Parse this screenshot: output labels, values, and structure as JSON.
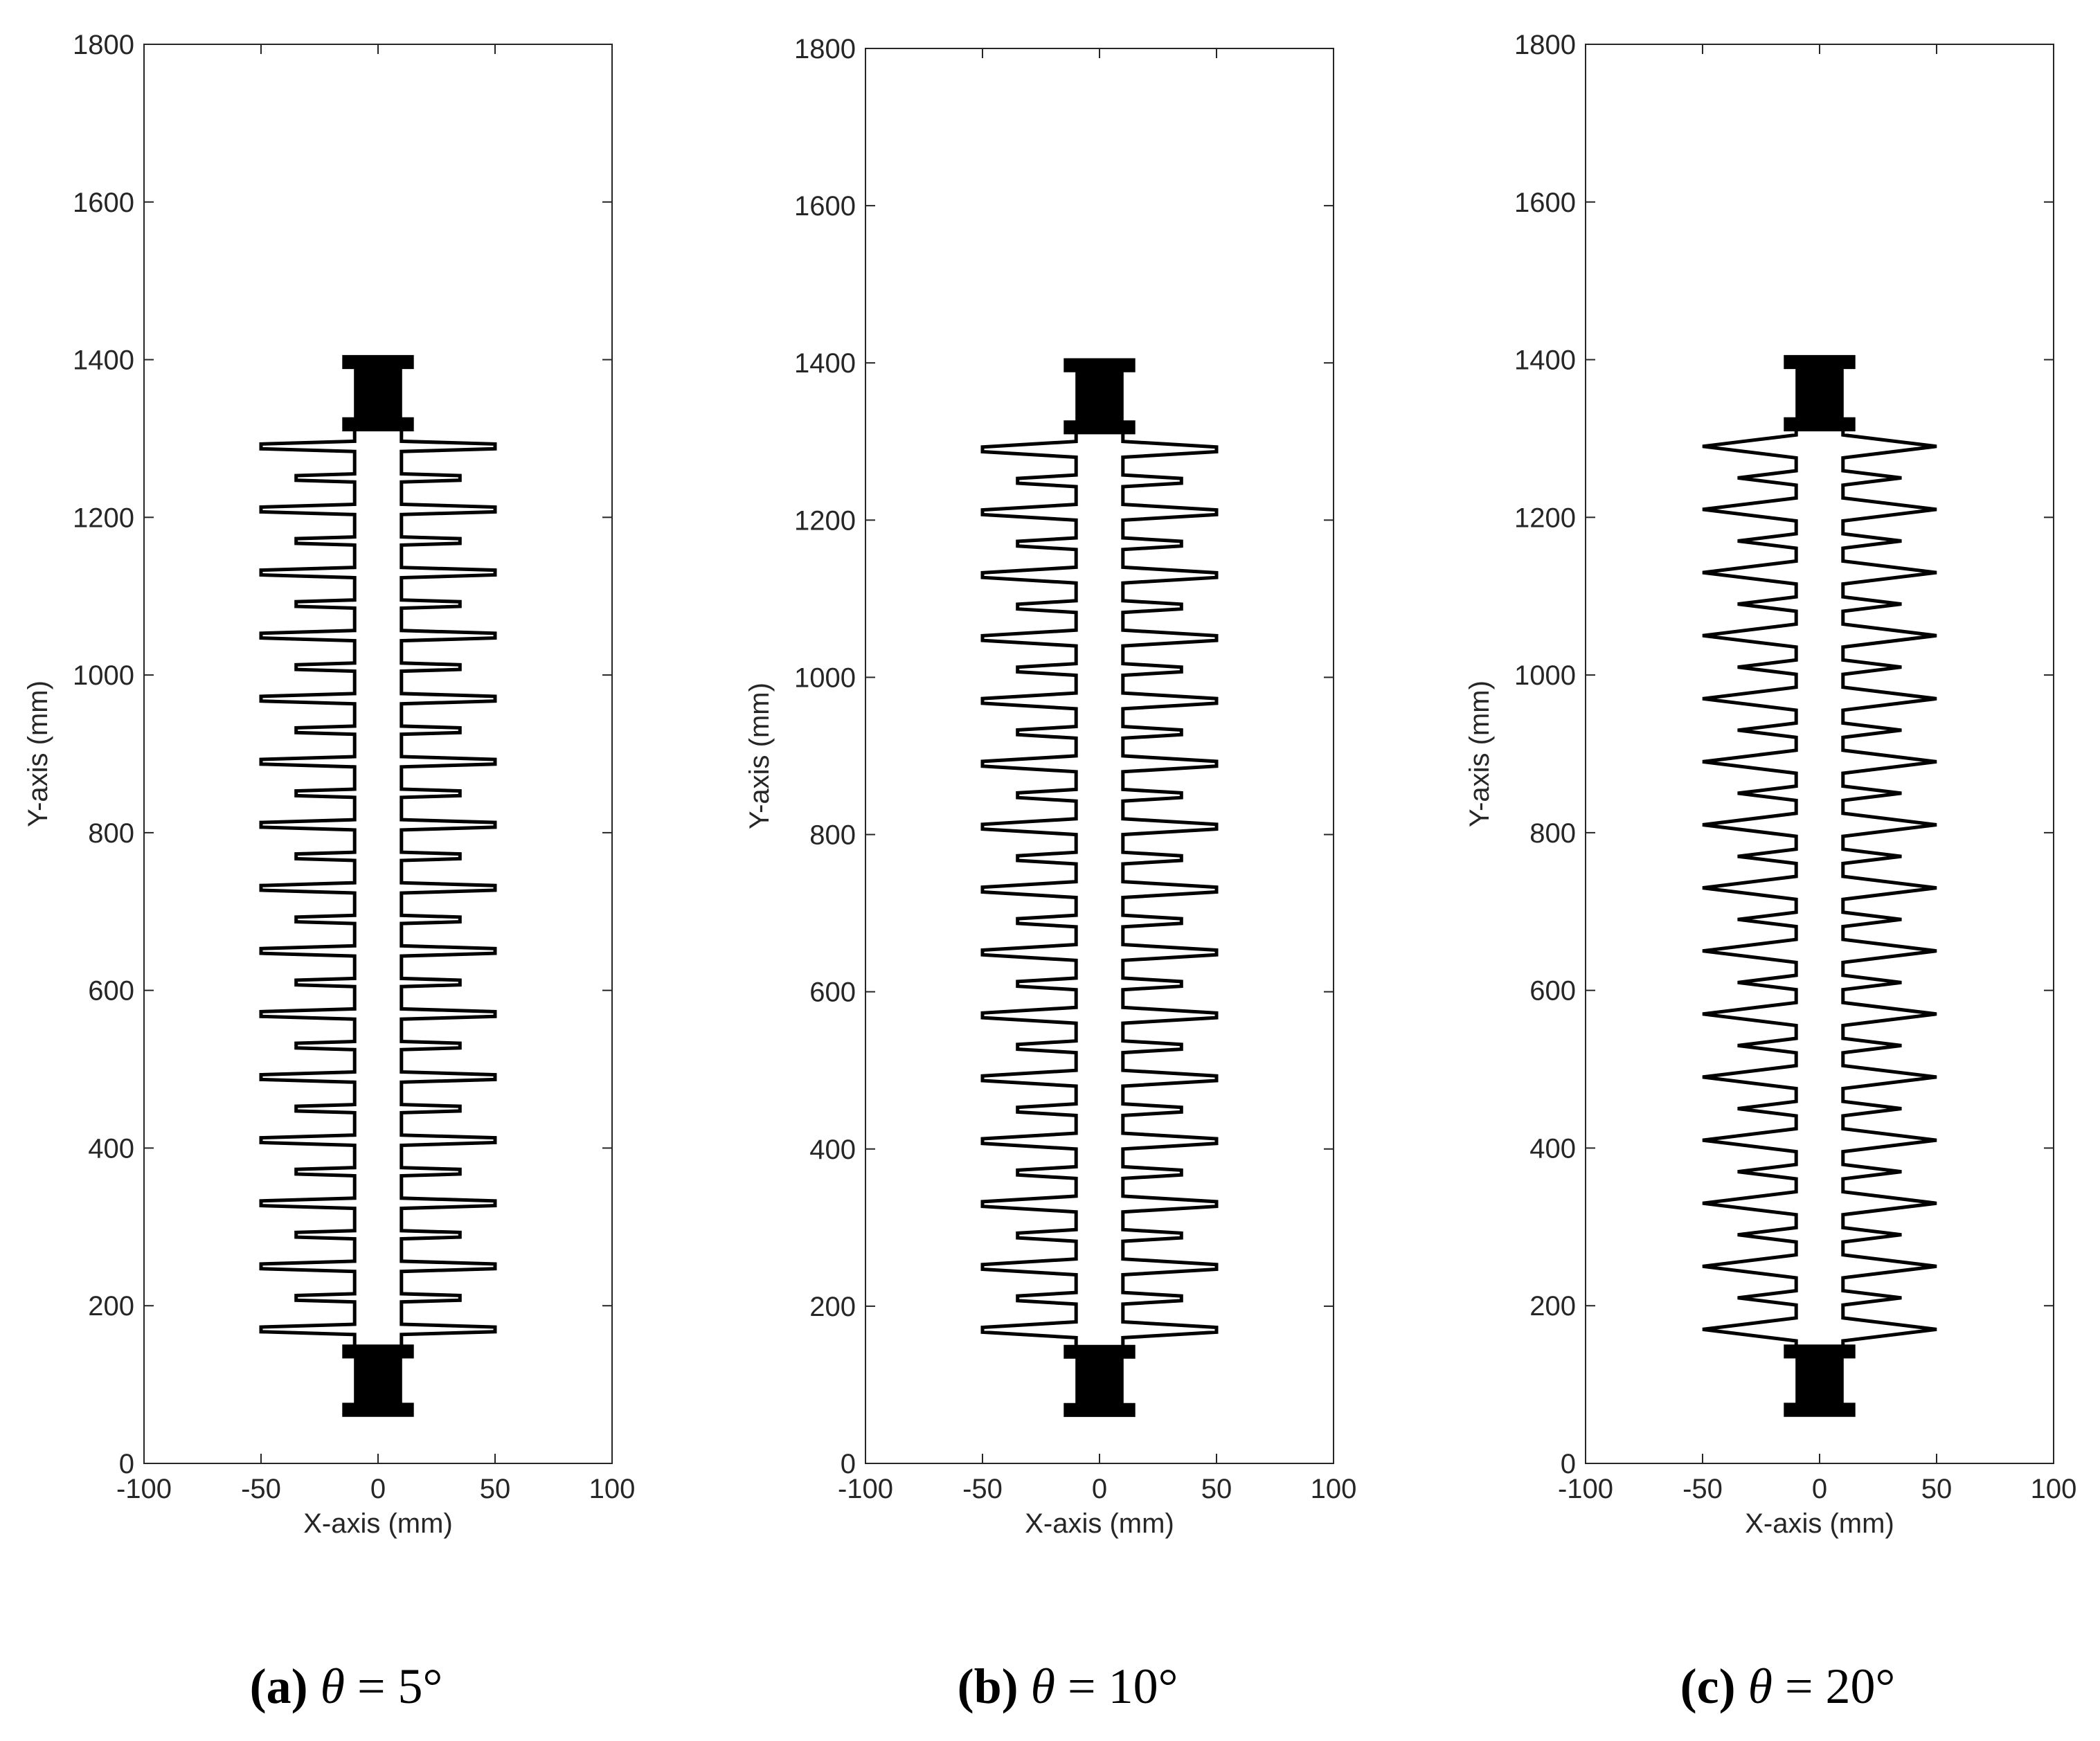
{
  "colors": {
    "outline": "#000000",
    "fitting": "#000000",
    "axes": "#262626",
    "background": "#ffffff"
  },
  "chart_data": [
    {
      "type": "line",
      "title": "",
      "xlabel": "X-axis (mm)",
      "ylabel": "Y-axis (mm)",
      "xlim": [
        -100,
        100
      ],
      "ylim": [
        0,
        1800
      ],
      "xticks": [
        "-100",
        "-50",
        "0",
        "50",
        "100"
      ],
      "yticks": [
        "0",
        "200",
        "400",
        "600",
        "800",
        "1000",
        "1200",
        "1400",
        "1600",
        "1800"
      ],
      "grid": false,
      "caption": {
        "letter": "(a)",
        "symbol": "θ",
        "value": "= 5°"
      },
      "shed_angle_deg": 5,
      "core_half_width": 10,
      "shed_tip_thickness": 6,
      "large_shed": {
        "x_extent": 50,
        "y_centers": [
          170,
          250,
          330,
          410,
          490,
          570,
          650,
          730,
          810,
          890,
          970,
          1050,
          1130,
          1210,
          1290
        ]
      },
      "small_shed": {
        "x_extent": 35,
        "y_centers": [
          210,
          290,
          370,
          450,
          530,
          610,
          690,
          770,
          850,
          930,
          1010,
          1090,
          1170,
          1250
        ]
      },
      "end_fittings": [
        {
          "y_bottom": 60,
          "y_top": 150,
          "half_width_outer": 15,
          "half_width_inner": 10
        },
        {
          "y_bottom": 1310,
          "y_top": 1405,
          "half_width_outer": 15,
          "half_width_inner": 10
        }
      ]
    },
    {
      "type": "line",
      "title": "",
      "xlabel": "X-axis (mm)",
      "ylabel": "Y-axis (mm)",
      "xlim": [
        -100,
        100
      ],
      "ylim": [
        0,
        1800
      ],
      "xticks": [
        "-100",
        "-50",
        "0",
        "50",
        "100"
      ],
      "yticks": [
        "0",
        "200",
        "400",
        "600",
        "800",
        "1000",
        "1200",
        "1400",
        "1600",
        "1800"
      ],
      "grid": false,
      "caption": {
        "letter": "(b)",
        "symbol": "θ",
        "value": "= 10°"
      },
      "shed_angle_deg": 10,
      "core_half_width": 10,
      "shed_tip_thickness": 6,
      "large_shed": {
        "x_extent": 50,
        "y_centers": [
          170,
          250,
          330,
          410,
          490,
          570,
          650,
          730,
          810,
          890,
          970,
          1050,
          1130,
          1210,
          1290
        ]
      },
      "small_shed": {
        "x_extent": 35,
        "y_centers": [
          210,
          290,
          370,
          450,
          530,
          610,
          690,
          770,
          850,
          930,
          1010,
          1090,
          1170,
          1250
        ]
      },
      "end_fittings": [
        {
          "y_bottom": 60,
          "y_top": 150,
          "half_width_outer": 15,
          "half_width_inner": 10
        },
        {
          "y_bottom": 1310,
          "y_top": 1405,
          "half_width_outer": 15,
          "half_width_inner": 10
        }
      ]
    },
    {
      "type": "line",
      "title": "",
      "xlabel": "X-axis (mm)",
      "ylabel": "Y-axis (mm)",
      "xlim": [
        -100,
        100
      ],
      "ylim": [
        0,
        1800
      ],
      "xticks": [
        "-100",
        "-50",
        "0",
        "50",
        "100"
      ],
      "yticks": [
        "0",
        "200",
        "400",
        "600",
        "800",
        "1000",
        "1200",
        "1400",
        "1600",
        "1800"
      ],
      "grid": false,
      "caption": {
        "letter": "(c)",
        "symbol": "θ",
        "value": "= 20°"
      },
      "shed_angle_deg": 20,
      "core_half_width": 10,
      "shed_tip_thickness": 0,
      "large_shed": {
        "x_extent": 50,
        "y_centers": [
          170,
          250,
          330,
          410,
          490,
          570,
          650,
          730,
          810,
          890,
          970,
          1050,
          1130,
          1210,
          1290
        ]
      },
      "small_shed": {
        "x_extent": 35,
        "y_centers": [
          210,
          290,
          370,
          450,
          530,
          610,
          690,
          770,
          850,
          930,
          1010,
          1090,
          1170,
          1250
        ]
      },
      "end_fittings": [
        {
          "y_bottom": 60,
          "y_top": 150,
          "half_width_outer": 15,
          "half_width_inner": 10
        },
        {
          "y_bottom": 1310,
          "y_top": 1405,
          "half_width_outer": 15,
          "half_width_inner": 10
        }
      ]
    }
  ]
}
